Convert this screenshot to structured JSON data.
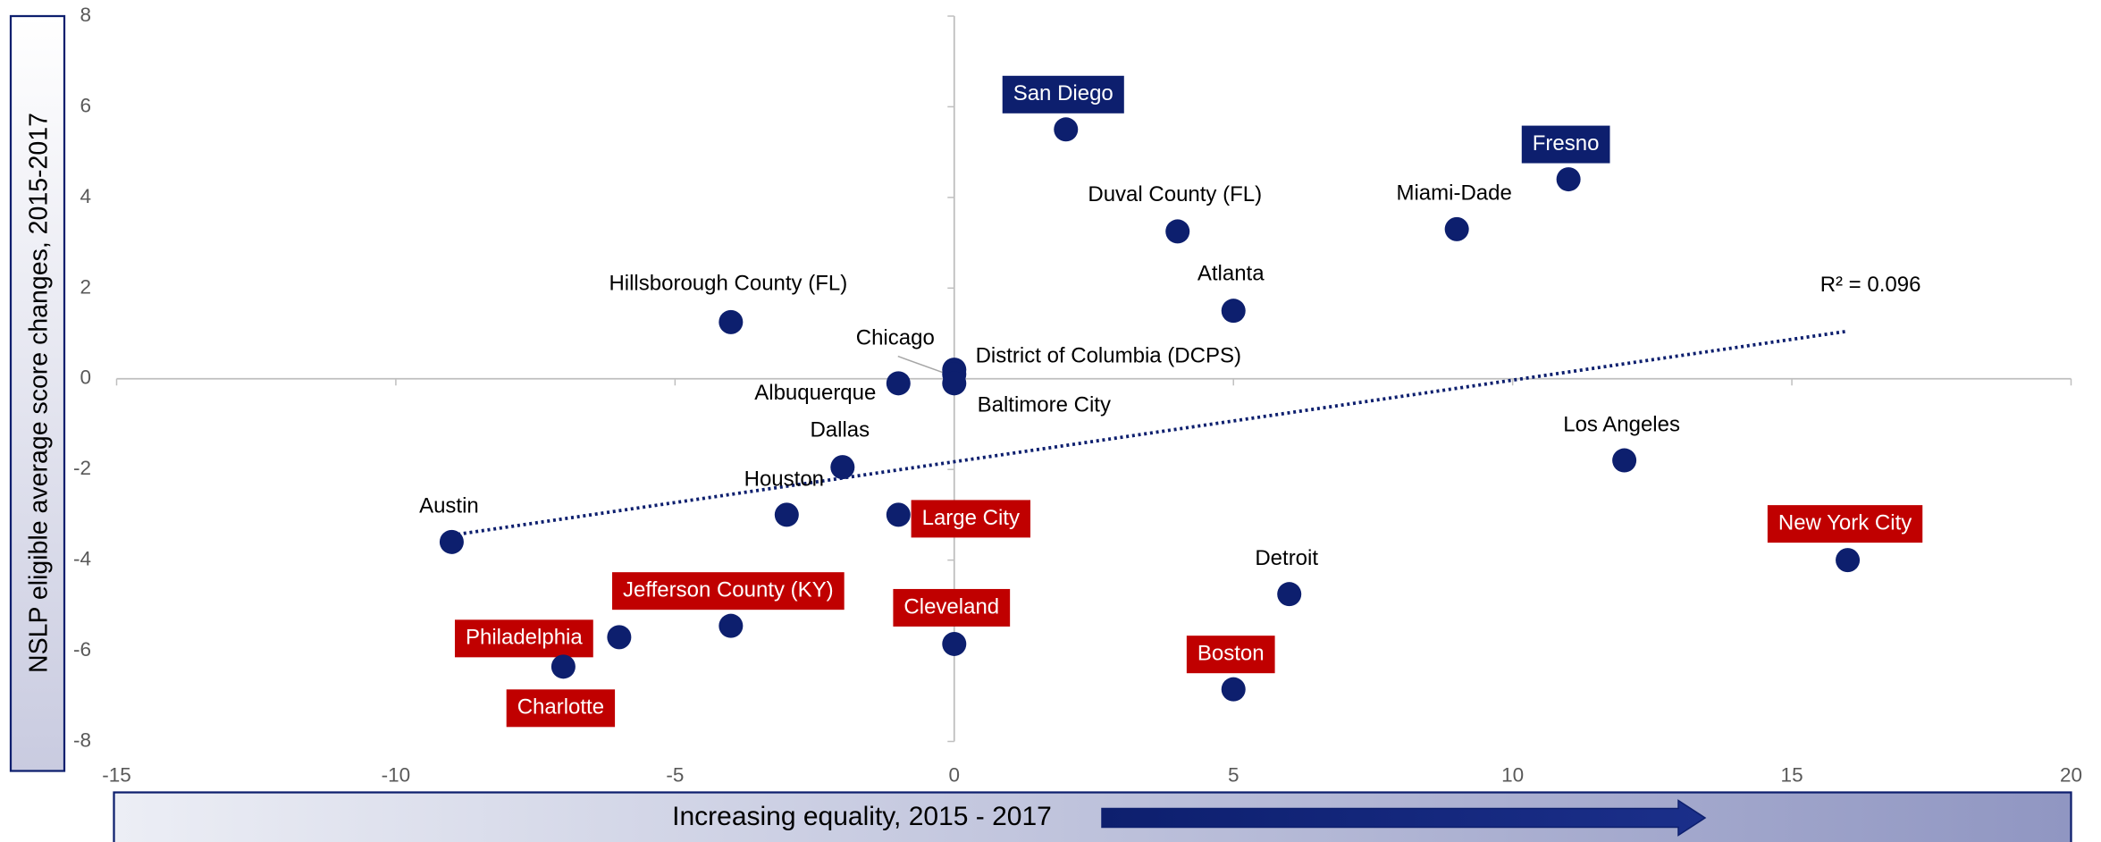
{
  "chart_data": {
    "type": "scatter",
    "y_axis_label": "NSLP eligible average score changes, 2015-2017",
    "x_axis_label": "Increasing equality, 2015 - 2017",
    "xlim": [
      -15,
      20
    ],
    "xticks": [
      -15,
      -10,
      -5,
      0,
      5,
      10,
      15,
      20
    ],
    "ylim": [
      -8,
      8
    ],
    "yticks": [
      -8,
      -6,
      -4,
      -2,
      0,
      2,
      4,
      6,
      8
    ],
    "point_color": "#0d1f6e",
    "points": [
      {
        "label": "San Diego",
        "x": 2,
        "y": 5.5,
        "label_fill": "#0d1f6e"
      },
      {
        "label": "Fresno",
        "x": 11,
        "y": 4.4,
        "label_fill": "#0d1f6e"
      },
      {
        "label": "Duval County (FL)",
        "x": 4,
        "y": 3.25
      },
      {
        "label": "Miami-Dade",
        "x": 9,
        "y": 3.3
      },
      {
        "label": "Atlanta",
        "x": 5,
        "y": 1.5
      },
      {
        "label": "Hillsborough County (FL)",
        "x": -4,
        "y": 1.25
      },
      {
        "label": "Chicago",
        "x": 0,
        "y": 0.2
      },
      {
        "label": "District of Columbia (DCPS)",
        "x": 0,
        "y": 0.1
      },
      {
        "label": "Baltimore City",
        "x": 0,
        "y": -0.1
      },
      {
        "label": "Albuquerque",
        "x": -1,
        "y": -0.1
      },
      {
        "label": "Dallas",
        "x": -2,
        "y": -1.95
      },
      {
        "label": "Houston",
        "x": -3,
        "y": -3
      },
      {
        "label": "Large City",
        "x": -1,
        "y": -3,
        "label_fill": "#c00000"
      },
      {
        "label": "Austin",
        "x": -9,
        "y": -3.6
      },
      {
        "label": "Los Angeles",
        "x": 12,
        "y": -1.8
      },
      {
        "label": "New York City",
        "x": 16,
        "y": -4,
        "label_fill": "#c00000"
      },
      {
        "label": "Detroit",
        "x": 6,
        "y": -4.75
      },
      {
        "label": "Jefferson County (KY)",
        "x": -4,
        "y": -5.45,
        "label_fill": "#c00000"
      },
      {
        "label": "Philadelphia",
        "x": -6,
        "y": -5.7,
        "label_fill": "#c00000"
      },
      {
        "label": "Charlotte",
        "x": -7,
        "y": -6.35,
        "label_fill": "#c00000"
      },
      {
        "label": "Cleveland",
        "x": 0,
        "y": -5.85,
        "label_fill": "#c00000"
      },
      {
        "label": "Boston",
        "x": 5,
        "y": -6.85,
        "label_fill": "#c00000"
      }
    ],
    "trendline": {
      "x": [
        -9,
        16
      ],
      "y": [
        -3.45,
        1.05
      ],
      "label": "R² = 0.096"
    }
  }
}
